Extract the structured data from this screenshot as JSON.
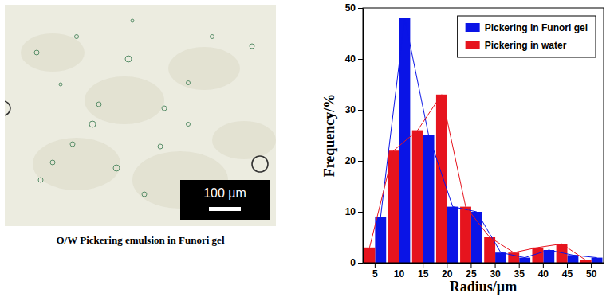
{
  "image": {
    "caption": "O/W Pickering emulsion in Funori gel",
    "scale_bar": "100 µm"
  },
  "chart_data": {
    "type": "bar",
    "x_label": "Radius/µm",
    "y_label": "Frequency/%",
    "categories": [
      "5",
      "10",
      "15",
      "20",
      "25",
      "30",
      "35",
      "40",
      "45",
      "50"
    ],
    "series": [
      {
        "name": "Pickering in Funori gel",
        "color": "#0a14e6",
        "line_style": "solid",
        "values": [
          9,
          48,
          25,
          11,
          10,
          2,
          1,
          2.5,
          1.5,
          1
        ]
      },
      {
        "name": "Pickering in water",
        "color": "#e6141e",
        "line_style": "solid",
        "values": [
          3,
          22,
          26,
          33,
          11,
          5,
          2,
          3,
          3.7,
          0.5
        ]
      }
    ],
    "ylim": [
      0,
      50
    ],
    "yticks": [
      0,
      10,
      20,
      30,
      40,
      50
    ],
    "grid": false,
    "legend": "upper right"
  }
}
